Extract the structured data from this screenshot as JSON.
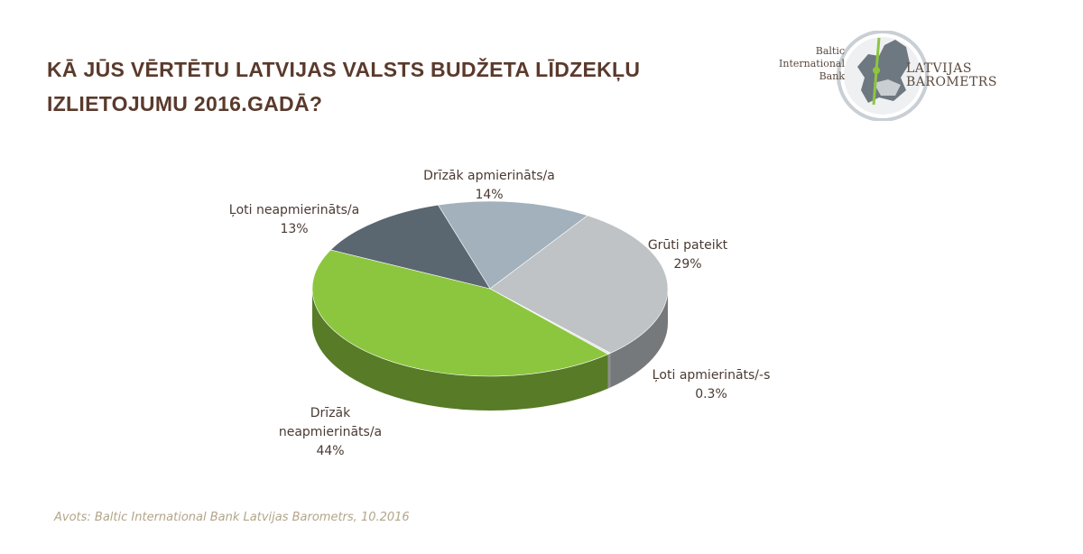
{
  "title": {
    "line1": "KĀ JŪS VĒRTĒTU LATVIJAS VALSTS BUDŽETA LĪDZEKĻU",
    "line2": "IZLIETOJUMU 2016.GADĀ?"
  },
  "logo": {
    "left_text": [
      "Baltic",
      "International",
      "Bank"
    ],
    "right_text": [
      "LATVIJAS",
      "BAROMETRS"
    ]
  },
  "source": "Avots: Baltic International Bank Latvijas Barometrs, 10.2016",
  "chart_data": {
    "type": "pie",
    "style": "3d",
    "slices": [
      {
        "name": "Drīzāk apmierināts/a",
        "value": 14,
        "value_label": "14%",
        "color": "#a3b1bc"
      },
      {
        "name": "Grūti pateikt",
        "value": 29,
        "value_label": "29%",
        "color": "#bfc3c6"
      },
      {
        "name": "Ļoti apmierināts/-s",
        "value": 0.3,
        "value_label": "0.3%",
        "color": "#e6e6e6"
      },
      {
        "name": "Drīzāk neapmierināts/a",
        "value": 44,
        "value_label": "44%",
        "color": "#8cc63f"
      },
      {
        "name": "Ļoti neapmierināts/a",
        "value": 13,
        "value_label": "13%",
        "color": "#5a6670"
      }
    ]
  }
}
